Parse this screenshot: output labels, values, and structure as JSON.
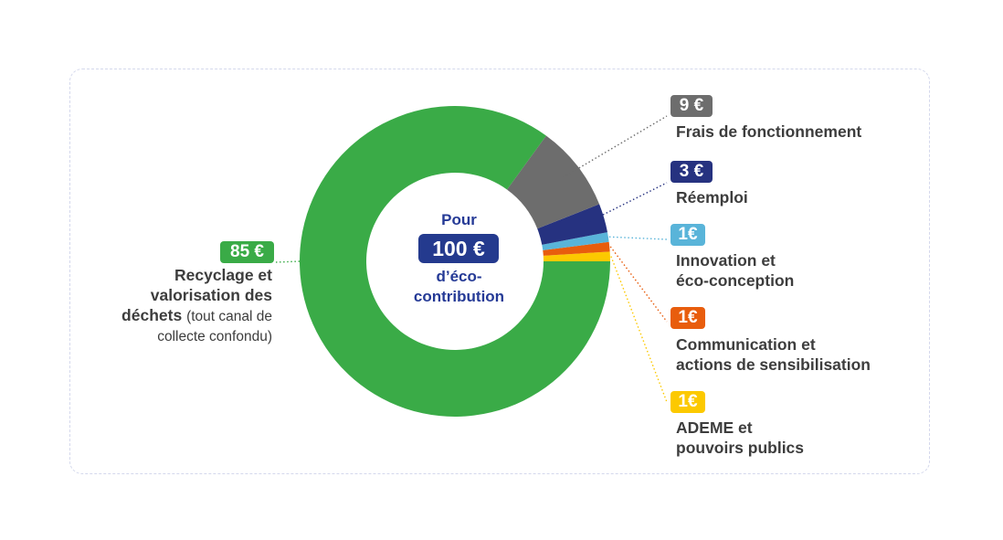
{
  "center": {
    "top": "Pour",
    "amount": "100 €",
    "line1": "d’éco-",
    "line2": "contribution"
  },
  "labels": {
    "recyclage": {
      "amount": "85 €",
      "lines": [
        "Recyclage et",
        "valorisation des",
        "déchets"
      ],
      "note_inline": "(tout canal de",
      "note_line": "collecte confondu)"
    },
    "frais": {
      "amount": "9 €",
      "lines": [
        "Frais de fonctionnement"
      ]
    },
    "reemploi": {
      "amount": "3 €",
      "lines": [
        "Réemploi"
      ]
    },
    "innovation": {
      "amount": "1€",
      "lines": [
        "Innovation et",
        "éco-conception"
      ]
    },
    "communication": {
      "amount": "1€",
      "lines": [
        "Communication et",
        "actions de sensibilisation"
      ]
    },
    "ademe": {
      "amount": "1€",
      "lines": [
        "ADEME et",
        "pouvoirs publics"
      ]
    }
  },
  "chart_data": {
    "type": "pie",
    "variant": "donut",
    "unit": "€",
    "total": 100,
    "start": "3 o'clock",
    "direction": "counter-clockwise",
    "slices": [
      {
        "key": "ademe",
        "value": 1,
        "color": "#fcc900"
      },
      {
        "key": "communication",
        "value": 1,
        "color": "#e85d0d"
      },
      {
        "key": "innovation",
        "value": 1,
        "color": "#59b4d9"
      },
      {
        "key": "reemploi",
        "value": 3,
        "color": "#263280"
      },
      {
        "key": "frais",
        "value": 9,
        "color": "#6d6d6d"
      },
      {
        "key": "recyclage",
        "value": 85,
        "color": "#3aab47"
      }
    ]
  }
}
